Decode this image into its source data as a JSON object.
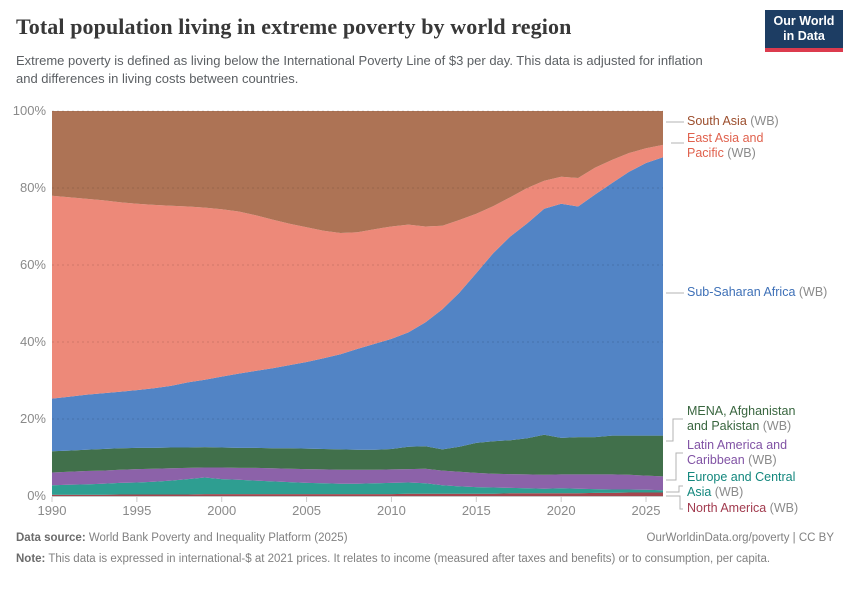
{
  "header": {
    "title": "Total population living in extreme poverty by world region",
    "subtitle": "Extreme poverty is defined as living below the International Poverty Line of $3 per day. This data is adjusted for inflation and differences in living costs between countries.",
    "logo_line1": "Our World",
    "logo_line2": "in Data",
    "logo_bg": "#1d3d63",
    "logo_accent": "#dc3b4e"
  },
  "chart_data": {
    "type": "area",
    "stacking": "percent",
    "title": "Total population living in extreme poverty by world region",
    "xlabel": "",
    "ylabel": "",
    "ylim": [
      0,
      100
    ],
    "grid": "dashed-horizontal",
    "legend_position": "right",
    "x": [
      1990,
      1991,
      1992,
      1993,
      1994,
      1995,
      1996,
      1997,
      1998,
      1999,
      2000,
      2001,
      2002,
      2003,
      2004,
      2005,
      2006,
      2007,
      2008,
      2009,
      2010,
      2011,
      2012,
      2013,
      2014,
      2015,
      2016,
      2017,
      2018,
      2019,
      2020,
      2021,
      2022,
      2023,
      2024,
      2025,
      2026
    ],
    "xticks": [
      1990,
      1995,
      2000,
      2005,
      2010,
      2015,
      2020,
      2025
    ],
    "yticks": [
      0,
      20,
      40,
      60,
      80,
      100
    ],
    "ytick_labels": [
      "0%",
      "20%",
      "40%",
      "60%",
      "80%",
      "100%"
    ],
    "series": [
      {
        "name": "North America (WB)",
        "color": "#A4464E",
        "values": [
          0.3,
          0.3,
          0.3,
          0.3,
          0.4,
          0.4,
          0.4,
          0.4,
          0.4,
          0.5,
          0.5,
          0.5,
          0.5,
          0.5,
          0.5,
          0.5,
          0.5,
          0.5,
          0.5,
          0.5,
          0.5,
          0.6,
          0.6,
          0.6,
          0.6,
          0.6,
          0.6,
          0.7,
          0.7,
          0.7,
          0.7,
          0.7,
          0.8,
          0.8,
          0.9,
          0.9,
          0.9
        ]
      },
      {
        "name": "Europe and Central Asia (WB)",
        "color": "#2E9E91",
        "values": [
          2.5,
          2.6,
          2.7,
          2.9,
          3.0,
          3.1,
          3.3,
          3.6,
          4.0,
          4.3,
          3.9,
          3.7,
          3.5,
          3.3,
          3.1,
          2.9,
          2.8,
          2.7,
          2.7,
          2.8,
          2.9,
          2.9,
          2.7,
          2.2,
          1.9,
          1.7,
          1.6,
          1.4,
          1.3,
          1.2,
          1.3,
          1.2,
          1.0,
          0.9,
          0.8,
          0.7,
          0.6
        ]
      },
      {
        "name": "Latin America and Caribbean (WB)",
        "color": "#8C62A9",
        "values": [
          3.3,
          3.4,
          3.5,
          3.4,
          3.4,
          3.5,
          3.4,
          3.2,
          2.9,
          2.6,
          3.0,
          3.1,
          3.3,
          3.4,
          3.5,
          3.6,
          3.6,
          3.6,
          3.6,
          3.5,
          3.5,
          3.5,
          3.8,
          3.8,
          3.8,
          3.7,
          3.6,
          3.6,
          3.6,
          3.6,
          3.6,
          3.7,
          3.8,
          3.9,
          3.8,
          3.7,
          3.6
        ]
      },
      {
        "name": "MENA, Afghanistan and Pakistan (WB)",
        "color": "#41704B",
        "values": [
          5.5,
          5.5,
          5.5,
          5.6,
          5.6,
          5.5,
          5.4,
          5.4,
          5.3,
          5.3,
          5.2,
          5.2,
          5.2,
          5.2,
          5.3,
          5.3,
          5.3,
          5.3,
          5.2,
          5.2,
          5.3,
          5.8,
          5.8,
          5.5,
          6.5,
          7.8,
          8.4,
          8.8,
          9.4,
          10.4,
          9.5,
          9.7,
          9.7,
          10.1,
          10.2,
          10.4,
          10.6
        ]
      },
      {
        "name": "Sub-Saharan Africa (WB)",
        "color": "#5284C5",
        "values": [
          13.7,
          14.0,
          14.3,
          14.5,
          14.7,
          15.0,
          15.5,
          16.0,
          16.9,
          17.5,
          18.4,
          19.3,
          20.0,
          20.8,
          21.6,
          22.5,
          23.6,
          24.7,
          26.2,
          27.5,
          28.6,
          29.7,
          32.2,
          36.4,
          40.0,
          44.1,
          48.9,
          52.9,
          55.8,
          58.7,
          60.8,
          59.9,
          63.0,
          65.6,
          68.5,
          70.8,
          72.3
        ]
      },
      {
        "name": "East Asia and Pacific (WB)",
        "color": "#ED8979",
        "values": [
          52.7,
          51.8,
          50.9,
          50.1,
          49.2,
          48.4,
          47.6,
          46.8,
          45.7,
          44.7,
          43.5,
          42.1,
          40.4,
          38.6,
          36.7,
          35.0,
          33.1,
          31.5,
          30.3,
          29.8,
          29.2,
          28.0,
          24.9,
          21.7,
          18.9,
          15.4,
          12.2,
          10.2,
          9.2,
          7.3,
          7.0,
          7.4,
          7.0,
          6.0,
          4.9,
          3.8,
          3.2
        ]
      },
      {
        "name": "South Asia (WB)",
        "color": "#AD7355",
        "values": [
          22.0,
          22.4,
          22.8,
          23.2,
          23.7,
          24.1,
          24.4,
          24.6,
          24.8,
          25.1,
          25.5,
          26.1,
          27.1,
          28.2,
          29.3,
          30.2,
          31.1,
          31.7,
          31.5,
          30.7,
          30.0,
          29.5,
          30.0,
          29.8,
          28.3,
          26.7,
          24.7,
          22.4,
          20.0,
          18.1,
          17.1,
          17.4,
          14.7,
          12.7,
          10.9,
          9.7,
          8.8
        ]
      }
    ]
  },
  "legend": {
    "items": [
      {
        "lines": [
          "South Asia"
        ],
        "wb": "(WB)",
        "color": "#9C4E2D"
      },
      {
        "lines": [
          "East Asia and",
          "Pacific"
        ],
        "wb": "(WB)",
        "color": "#E0614D"
      },
      {
        "lines": [
          "Sub-Saharan Africa"
        ],
        "wb": "(WB)",
        "color": "#3E70B7"
      },
      {
        "lines": [
          "MENA, Afghanistan",
          "and Pakistan"
        ],
        "wb": "(WB)",
        "color": "#39663F"
      },
      {
        "lines": [
          "Latin America and",
          "Caribbean"
        ],
        "wb": "(WB)",
        "color": "#8153A5"
      },
      {
        "lines": [
          "Europe and Central",
          "Asia"
        ],
        "wb": "(WB)",
        "color": "#13877D"
      },
      {
        "lines": [
          "North America"
        ],
        "wb": "(WB)",
        "color": "#A13A4E"
      }
    ]
  },
  "footer": {
    "source_label": "Data source:",
    "source_text": " World Bank Poverty and Inequality Platform (2025)",
    "link_text": "OurWorldinData.org/poverty | CC BY",
    "note_label": "Note:",
    "note_text": " This data is expressed in international-$ at 2021 prices. It relates to income (measured after taxes and benefits) or to consumption, per capita."
  }
}
